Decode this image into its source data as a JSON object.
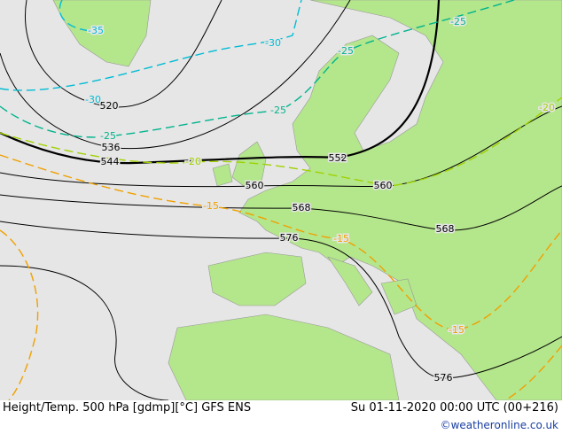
{
  "map": {
    "height_labels": [
      "520",
      "536",
      "544",
      "552",
      "560",
      "560",
      "568",
      "568",
      "576",
      "576"
    ],
    "temperature_labels": [
      "-35",
      "-30",
      "-30",
      "-25",
      "-25",
      "-25",
      "-25",
      "-20",
      "-20",
      "-15",
      "-15",
      "-15"
    ]
  },
  "footer": {
    "title": "Height/Temp. 500 hPa [gdmp][°C] GFS ENS",
    "valid": "Su 01-11-2020 00:00 UTC (00+216)",
    "credit": "©weatheronline.co.uk"
  }
}
